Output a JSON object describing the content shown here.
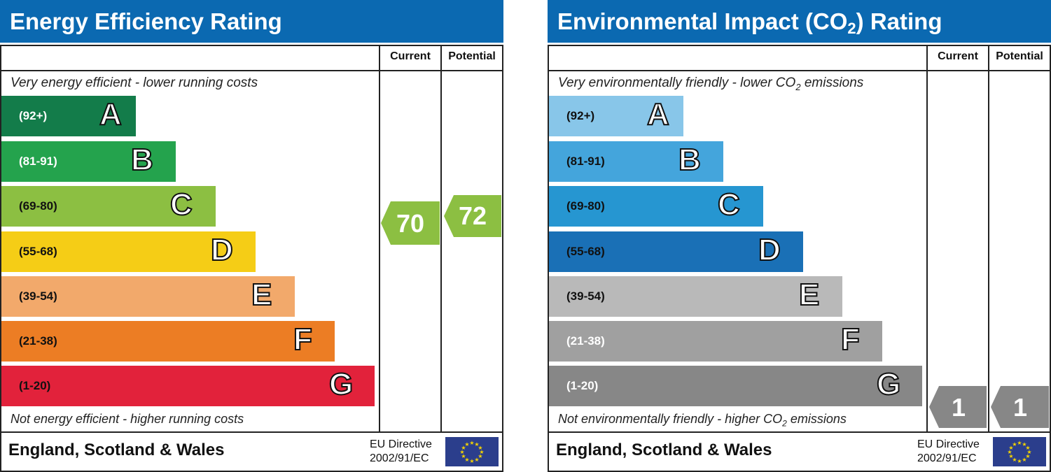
{
  "colors": {
    "title_bar": "#0b69b1",
    "energy_bands": [
      "#137c4a",
      "#24a34d",
      "#8cbf42",
      "#f5cd16",
      "#f2a96b",
      "#ec7d24",
      "#e2223b"
    ],
    "environmental_bands": [
      "#88c6e9",
      "#44a5dc",
      "#2696d1",
      "#1a70b6",
      "#b9b9b9",
      "#a0a0a0",
      "#878787"
    ],
    "energy_rating_arrow": "#8cbf42",
    "environmental_rating_arrow": "#878787",
    "eu_flag": "#2b3e8c",
    "eu_stars": "#f5d400"
  },
  "energy": {
    "title": "Energy Efficiency Rating",
    "col_current": "Current",
    "col_potential": "Potential",
    "top_caption": "Very energy efficient - lower running costs",
    "bottom_caption": "Not energy efficient - higher running costs",
    "bands": [
      {
        "range": "(92+)",
        "letter": "A"
      },
      {
        "range": "(81-91)",
        "letter": "B"
      },
      {
        "range": "(69-80)",
        "letter": "C"
      },
      {
        "range": "(55-68)",
        "letter": "D"
      },
      {
        "range": "(39-54)",
        "letter": "E"
      },
      {
        "range": "(21-38)",
        "letter": "F"
      },
      {
        "range": "(1-20)",
        "letter": "G"
      }
    ],
    "current": "70",
    "potential": "72",
    "footer_country": "England, Scotland & Wales",
    "eu_line1": "EU Directive",
    "eu_line2": "2002/91/EC"
  },
  "environmental": {
    "title_before_sub": "Environmental Impact (CO",
    "title_sub": "2",
    "title_after_sub": ") Rating",
    "col_current": "Current",
    "col_potential": "Potential",
    "top_caption_before_sub": "Very environmentally friendly - lower CO",
    "top_caption_sub": "2",
    "top_caption_after_sub": " emissions",
    "bottom_caption_before_sub": "Not environmentally friendly - higher CO",
    "bottom_caption_sub": "2",
    "bottom_caption_after_sub": " emissions",
    "bands": [
      {
        "range": "(92+)",
        "letter": "A"
      },
      {
        "range": "(81-91)",
        "letter": "B"
      },
      {
        "range": "(69-80)",
        "letter": "C"
      },
      {
        "range": "(55-68)",
        "letter": "D"
      },
      {
        "range": "(39-54)",
        "letter": "E"
      },
      {
        "range": "(21-38)",
        "letter": "F"
      },
      {
        "range": "(1-20)",
        "letter": "G"
      }
    ],
    "current": "1",
    "potential": "1",
    "footer_country": "England, Scotland & Wales",
    "eu_line1": "EU Directive",
    "eu_line2": "2002/91/EC"
  }
}
